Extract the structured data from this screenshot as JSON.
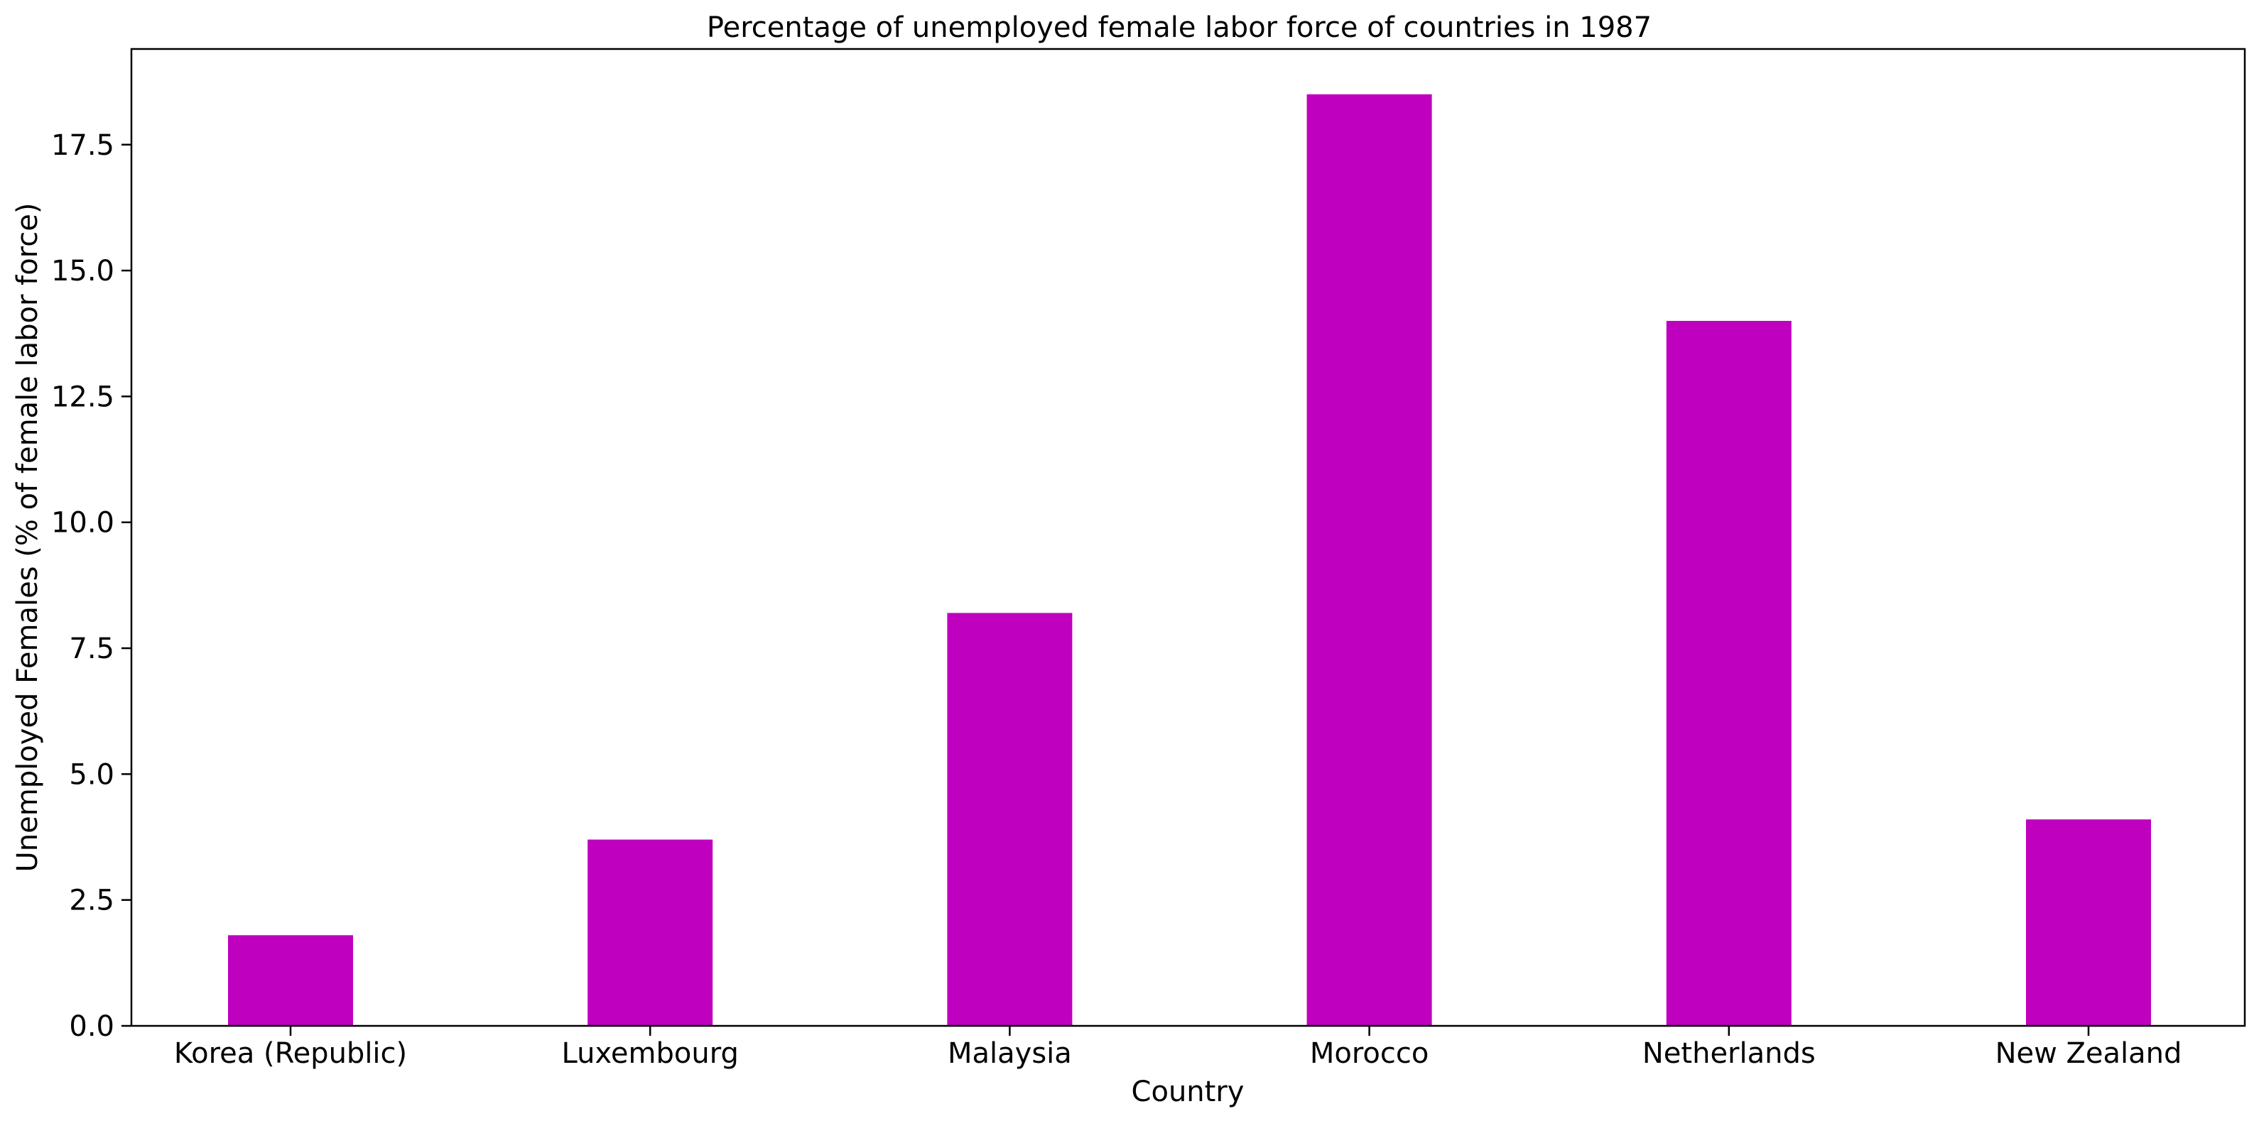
{
  "chart_data": {
    "type": "bar",
    "title": "Percentage of unemployed female labor force of countries in 1987",
    "xlabel": "Country",
    "ylabel": "Unemployed Females (% of female labor force)",
    "categories": [
      "Korea (Republic)",
      "Luxembourg",
      "Malaysia",
      "Morocco",
      "Netherlands",
      "New Zealand"
    ],
    "values": [
      1.8,
      3.7,
      8.2,
      18.5,
      14.0,
      4.1
    ],
    "ylim": [
      0,
      19.4
    ],
    "yticks": [
      0.0,
      2.5,
      5.0,
      7.5,
      10.0,
      12.5,
      15.0,
      17.5
    ],
    "ytick_labels": [
      "0.0",
      "2.5",
      "5.0",
      "7.5",
      "10.0",
      "12.5",
      "15.0",
      "17.5"
    ],
    "bar_color": "#bf00bf",
    "grid": false,
    "legend": "none"
  }
}
